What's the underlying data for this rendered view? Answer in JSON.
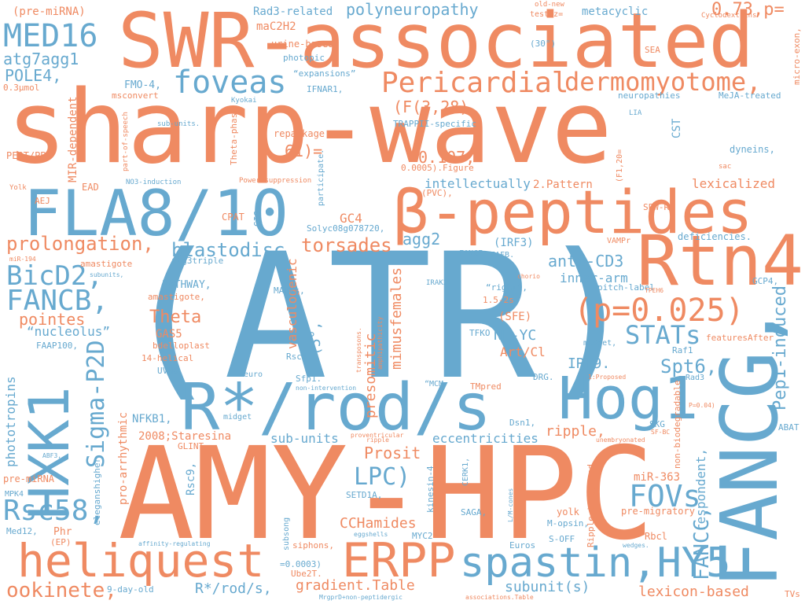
{
  "colors": {
    "orange": "#ef8a62",
    "blue": "#67a9cf",
    "background": "#ffffff"
  },
  "words": {
    "w01": "sharp-wave",
    "w02": "(ATR)",
    "w03": "AMY-HPC",
    "w04": "SWR-associated",
    "w05": "FANCG,",
    "w06": "β-peptides",
    "w07": "FLA8/10",
    "w08": "R*/rod/s",
    "w09": "Rtn4",
    "w10": "Hog1",
    "w11": "heliquest",
    "w12": "spastin,HY5",
    "w13": "ERPP",
    "w14": "HXK1",
    "w15": "Pericardial",
    "w16": "dermomyotome,",
    "w17": "MED16",
    "w18": "foveas",
    "w19": "(p=0.025)",
    "w20": "FANCB,",
    "w21": "BicD2,",
    "w22": "Rsc58,",
    "w23": "FOVs",
    "w24": "Sigma-P2D",
    "w25": "LPC)",
    "w26": "STATs",
    "w27": "ookinete,",
    "w28": "prolongation,",
    "w29": "blastodisc",
    "w30": "torsades",
    "w31": "FANCC,",
    "w32": "Pep1-induced",
    "w33": "Spt6,",
    "w34": "0.73,p=",
    "w35": "polyneuropathy",
    "w36": "atg7agg1",
    "w37": "POLE4,",
    "w38": "(pre-miRNA)",
    "w39": "Rad3-related",
    "w40": "maC2H2",
    "w41": "metacyclic",
    "w42": "urine-based",
    "w43": "photopic",
    "w44": "“expansions”",
    "w45": "FMO-4,",
    "w46": "IFNAR1,",
    "w47": "(F(3,28)",
    "w48": "0.107,",
    "w49": "61)=",
    "w50": "MIR-dependent",
    "w51": "agg2",
    "w52": "anti-CD3",
    "w53": "inner-arm",
    "w54": "GC4",
    "w55": "Theta",
    "w56": "pointes",
    "w57": "“nucleolus”",
    "w58": "GAS5",
    "w59": "phototropins",
    "w60": "presomitic",
    "w61": "mimusfemales",
    "w62": "vasculogenic",
    "w63": "(5°,",
    "w64": "NF-YC",
    "w65": "IRF9.",
    "w66": "Art/Cl",
    "w67": "Prosit",
    "w68": "CCHamides",
    "w69": "gradient.Table",
    "w70": "R*/rod/s,",
    "w71": "subunit(s)",
    "w72": "lexicon-based",
    "w73": "respondent,",
    "w74": "ripple,",
    "w75": "eccentricities",
    "w76": "sub-units",
    "w77": "NFKB1,",
    "w78": "2008;Staresina",
    "w79": "pro-arrhythmic",
    "w80": "Rsc9,",
    "w81": "miR-363",
    "w82": "pre-migratory",
    "w83": "intellectually",
    "w84": "2.Pattern",
    "w85": "lexicalized",
    "w86": "SPW-R",
    "w87": "deficiencies.",
    "w88": "CST",
    "w89": "dyneins,",
    "w90": "neuropathies",
    "w91": "MeJA-treated",
    "w92": "micro-exon,",
    "w93": "TRAPPII-specific",
    "w94": "repackage",
    "w95": "Theta-phase",
    "w96": "PEOT/PBT",
    "w97": "AEJ",
    "w98": "EAD",
    "w99": "CPAT",
    "w100": "GIGs",
    "w101": "Solyc08g078720,",
    "w102": "(IRF3)",
    "w103": "FANCE",
    "w104": "FAFB.",
    "w105": "VAMPr",
    "w106": "amastigote",
    "w107": "atg3triple",
    "w108": "PATHWAY,",
    "w109": "amastigote,",
    "w110": "MAPKs,",
    "w111": "“right”,",
    "w112": "1.5-2s",
    "w113": "(SFE)",
    "w114": "pitch-label",
    "w115": "GCP4,",
    "w116": "FAAP100,",
    "w117": "bdelloplast",
    "w118": "14-helical",
    "w119": "UVH6",
    "w120": "Rsc4,",
    "w121": "TFKO",
    "w122": "DRG.",
    "w123": "midget,",
    "w124": "Raf1",
    "w125": "featuresAfter",
    "w126": "euro",
    "w127": "Sfp1.",
    "w128": "“MCM",
    "w129": "TMpred",
    "w130": "Dsn1,",
    "w131": "SKG",
    "w132": "Rad3",
    "w133": "ABAT",
    "w134": "midget",
    "w135": "GLINT",
    "w136": "CERK1,",
    "w137": "SETD1A,",
    "w138": "SAGA,",
    "w139": "yolk",
    "w140": "M-opsin,",
    "w141": "MYC2",
    "w142": "S-OFF",
    "w143": "Euros",
    "w144": "Rbcl",
    "w145": "Phr",
    "w146": "(EP)",
    "w147": "Med12,",
    "w148": "MPK4",
    "w149": "pre-miRNA",
    "w150": "siphons,",
    "w151": "=0.0003)",
    "w152": "Ube2T.",
    "w153": "9-day-old",
    "w154": "TVs",
    "w155": "subsong",
    "w156": "eleganshigher",
    "w157": "kinesin-4",
    "w158": "Ripple-triggered",
    "w159": "non-biodegradable",
    "w160": "SEA",
    "w161": "test;z=",
    "w162": "old-new",
    "w163": "Cyclodextrins",
    "w164": "(30°)",
    "w165": "0.3µmol",
    "w166": "msconvert",
    "w167": "sub-units.",
    "w168": "Kyokai",
    "w169": "LIA",
    "w170": "sac",
    "w171": "(F1,20=",
    "w172": "0.0005).Figure",
    "w173": "participate.",
    "w174": "(PVC),",
    "w175": "Power-suppression",
    "w176": "NO3-induction",
    "w177": "part-of-speech",
    "w178": "Yolk",
    "w179": "miR-194",
    "w180": "subunits,",
    "w181": "IRAK2,",
    "w182": "chorio",
    "w183": "TPEH6",
    "w184": "transposons.",
    "w185": "amphipathicity",
    "w186": "1:Proposed",
    "w187": "P=0.04)",
    "w188": "SF-BC",
    "w189": "unembryonated",
    "w190": "non-intervention",
    "w191": "proventricular",
    "w192": "ripple",
    "w193": "L/M-cones",
    "w194": "eggshells",
    "w195": "affinity-regulating",
    "w196": "wedges.",
    "w197": "MrgprD+non-peptidergic",
    "w198": "associations.Table",
    "w199": "ABF3,"
  }
}
